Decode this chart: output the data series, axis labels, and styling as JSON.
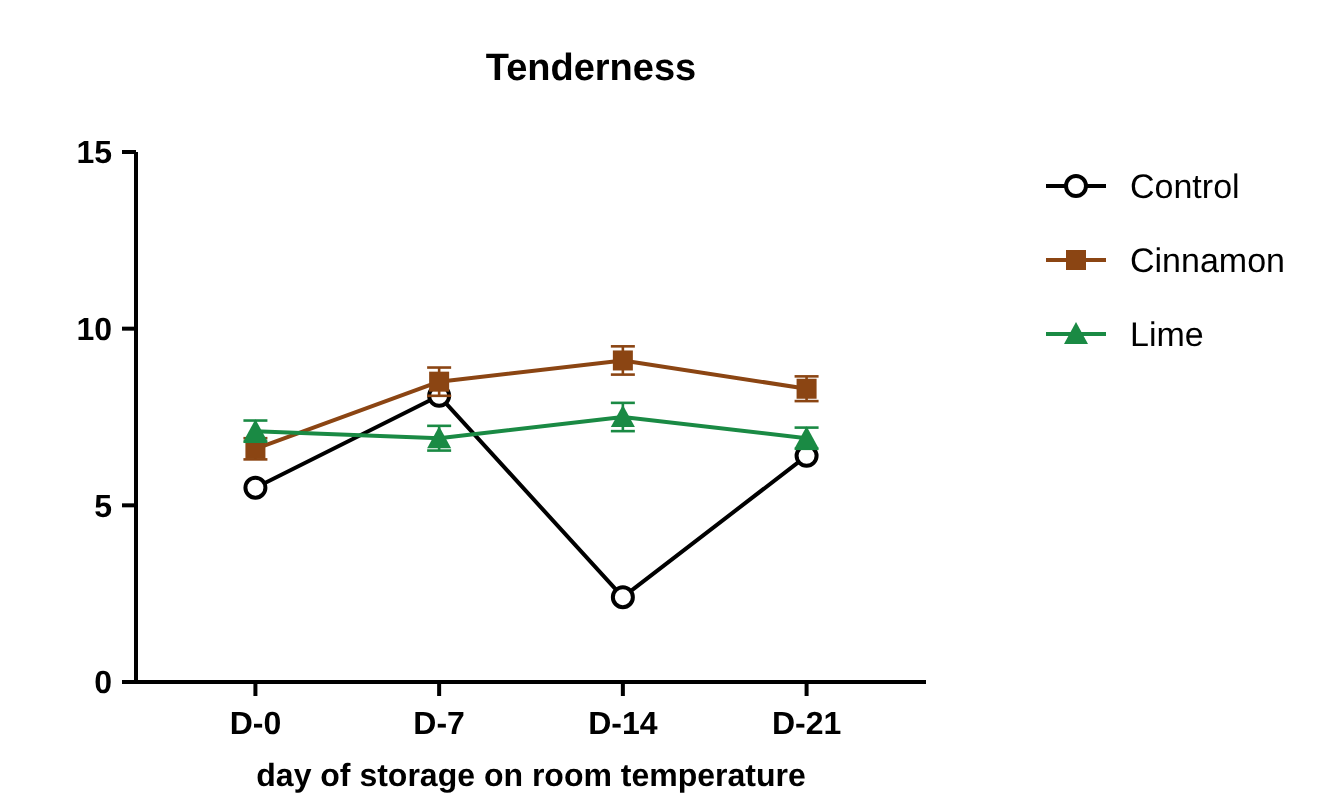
{
  "chart_data": {
    "type": "line",
    "title": "Tenderness",
    "xlabel": "day of storage on room temperature",
    "categories": [
      "D-0",
      "D-7",
      "D-14",
      "D-21"
    ],
    "ylim": [
      0,
      15
    ],
    "yticks": [
      0,
      5,
      10,
      15
    ],
    "grid": false,
    "legend": "right",
    "series": [
      {
        "name": "Control",
        "color": "#000000",
        "marker": "circle",
        "values": [
          5.5,
          8.1,
          2.4,
          6.4
        ]
      },
      {
        "name": "Cinnamon",
        "color": "#8b4513",
        "marker": "square",
        "values": [
          6.6,
          8.5,
          9.1,
          8.3
        ],
        "errors": [
          0.3,
          0.4,
          0.4,
          0.35
        ]
      },
      {
        "name": "Lime",
        "color": "#1a8a44",
        "marker": "triangle",
        "values": [
          7.1,
          6.9,
          7.5,
          6.9
        ],
        "errors": [
          0.3,
          0.35,
          0.4,
          0.3
        ]
      }
    ]
  }
}
